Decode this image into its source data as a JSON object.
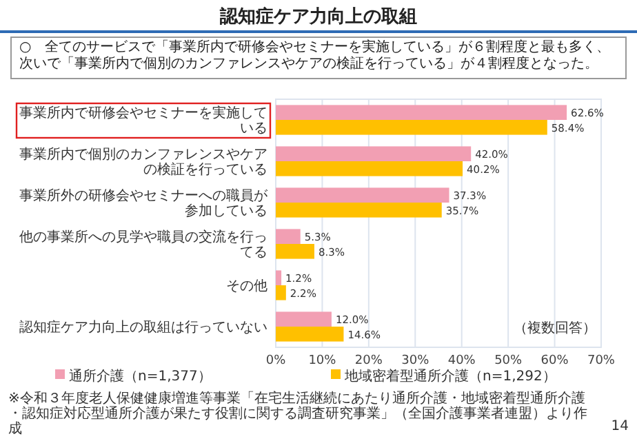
{
  "chart_data": {
    "type": "bar",
    "orientation": "horizontal",
    "title": "認知症ケア力向上の取組",
    "categories": [
      "事業所内で研修会やセミナーを実施している",
      "事業所内で個別のカンファレンスやケアの検証を行っている",
      "事業所外の研修会やセミナーへの職員が参加している",
      "他の事業所への見学や職員の交流を行ってる",
      "その他",
      "認知症ケア力向上の取組は行っていない"
    ],
    "series": [
      {
        "name": "通所介護（n=1,377）",
        "color": "#f29fb3",
        "values": [
          62.6,
          42.0,
          37.3,
          5.3,
          1.2,
          12.0
        ]
      },
      {
        "name": "地域密着型通所介護（n=1,292）",
        "color": "#ffc000",
        "values": [
          58.4,
          40.2,
          35.7,
          8.3,
          2.2,
          14.6
        ]
      }
    ],
    "xlim": [
      0,
      70
    ],
    "xticks": [
      {
        "value": 0,
        "label": "0%"
      },
      {
        "value": 10,
        "label": "10%"
      },
      {
        "value": 20,
        "label": "20%"
      },
      {
        "value": 30,
        "label": "30%"
      },
      {
        "value": 40,
        "label": "40%"
      },
      {
        "value": 50,
        "label": "50%"
      },
      {
        "value": 60,
        "label": "60%"
      },
      {
        "value": 70,
        "label": "70%"
      }
    ],
    "value_labels": [
      [
        "62.6%",
        "42.0%",
        "37.3%",
        "5.3%",
        "1.2%",
        "12.0%"
      ],
      [
        "58.4%",
        "40.2%",
        "35.7%",
        "8.3%",
        "2.2%",
        "14.6%"
      ]
    ],
    "grid": "x",
    "legend": "bottom",
    "annotations": [
      "○　全てのサービスで「事業所内で研修会やセミナーを実施している」が６割程度と最も多く、次いで「事業所内で個別のカンファレンスやケアの検証を行っている」が４割程度となった。",
      "（複数回答）",
      "※令和３年度老人保健健康増進等事業「在宅生活継続にあたり通所介護・地域密着型通所介護・認知症対応型通所介護が果たす役割に関する調査研究事業」（全国介護事業者連盟）より作成",
      "14"
    ]
  }
}
